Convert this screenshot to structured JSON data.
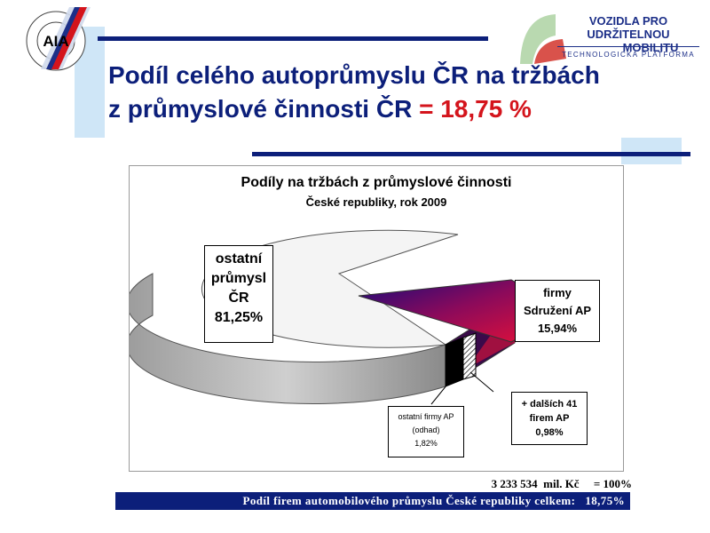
{
  "header": {
    "title_line1": "Podíl celého autoprůmyslu ČR na tržbách",
    "title_line2": "z průmyslové činnosti ČR",
    "title_highlight": "= 18,75 %"
  },
  "logos": {
    "left": {
      "name": "AIA",
      "ring_text": "SDRUŽENÍ AUTOMOBILOVÉHO PRŮMYSLU"
    },
    "right": {
      "line1": "VOZIDLA PRO UDRŽITELNOU",
      "line2": "MOBILITU",
      "line3": "TECHNOLOGICKÁ PLATFORMA"
    }
  },
  "chart_data": {
    "type": "pie",
    "title": "Podíly na tržbách z průmyslové činnosti",
    "subtitle": "České republiky, rok 2009",
    "slices": [
      {
        "label": "ostatní průmysl ČR",
        "value": 81.25,
        "value_text": "81,25%",
        "color": "#f2f2f2"
      },
      {
        "label": "firmy Sdružení AP",
        "value": 15.94,
        "value_text": "15,94%",
        "color": "#8b0a5b"
      },
      {
        "label": "ostatní firmy AP (odhad)",
        "value": 1.82,
        "value_text": "1,82%",
        "color": "#000000"
      },
      {
        "label": "+ dalších 41 firem AP",
        "value": 0.98,
        "value_text": "0,98%",
        "color": "#ffffff"
      }
    ],
    "labels": {
      "ostatni_l1": "ostatní",
      "ostatni_l2": "průmysl",
      "ostatni_l3": "ČR",
      "ostatni_pct": "81,25%",
      "firmy_l1": "firmy",
      "firmy_l2": "Sdružení AP",
      "firmy_pct": "15,94%",
      "odhad_l1": "ostatní firmy AP",
      "odhad_l2": "(odhad)",
      "odhad_pct": "1,82%",
      "dalsi_l1": "+ dalších 41",
      "dalsi_l2": "firem AP",
      "dalsi_pct": "0,98%"
    }
  },
  "footer": {
    "total_value": "3 233 534",
    "total_unit": "mil. Kč",
    "total_eq": "= 100%",
    "summary": "Podíl firem automobilového průmyslu České republiky celkem:   18,75%"
  },
  "colors": {
    "navy": "#0c1f7a",
    "accent_red": "#d4141c",
    "light_blue": "#cfe6f7"
  }
}
